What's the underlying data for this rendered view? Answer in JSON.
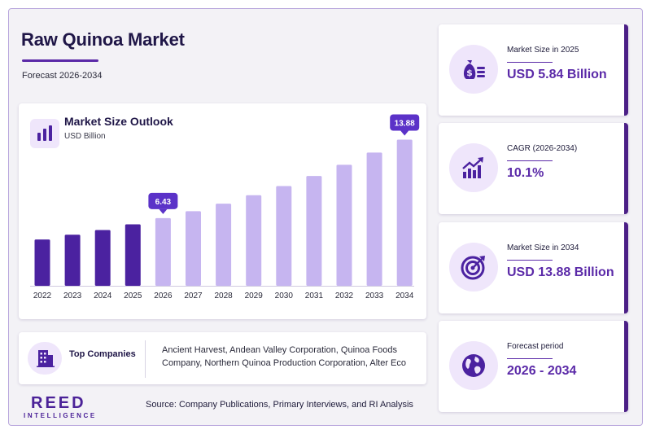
{
  "header": {
    "title": "Raw Quinoa Market",
    "subtitle": "Forecast 2026-2034"
  },
  "chart_data": {
    "type": "bar",
    "title": "Market Size Outlook",
    "unit_label": "USD Billion",
    "categories": [
      "2022",
      "2023",
      "2024",
      "2025",
      "2026",
      "2027",
      "2028",
      "2029",
      "2030",
      "2031",
      "2032",
      "2033",
      "2034"
    ],
    "values": [
      4.4,
      4.85,
      5.3,
      5.84,
      6.43,
      7.08,
      7.8,
      8.6,
      9.47,
      10.43,
      11.49,
      12.65,
      13.88
    ],
    "ylim": [
      0,
      15
    ],
    "series_colors": {
      "historical": "#4b22a0",
      "forecast": "#c6b5f0"
    },
    "historical_count": 4,
    "callouts": [
      {
        "category": "2026",
        "label": "6.43"
      },
      {
        "category": "2034",
        "label": "13.88"
      }
    ],
    "callout_color": "#5b32c8",
    "grid": false,
    "legend": "none"
  },
  "companies": {
    "label": "Top Companies",
    "text": "Ancient Harvest, Andean Valley Corporation, Quinoa Foods Company, Northern Quinoa Production Corporation, Alter Eco"
  },
  "footer": {
    "logo_main": "REED",
    "logo_sub": "INTELLIGENCE",
    "source": "Source: Company Publications, Primary Interviews, and RI Analysis"
  },
  "stats": [
    {
      "label": "Market Size in 2025",
      "value": "USD 5.84 Billion",
      "icon": "money-bag-icon"
    },
    {
      "label": "CAGR (2026-2034)",
      "value": "10.1%",
      "icon": "growth-chart-icon"
    },
    {
      "label": "Market Size in 2034",
      "value": "USD 13.88 Billion",
      "icon": "target-icon"
    },
    {
      "label": "Forecast period",
      "value": "2026 - 2034",
      "icon": "globe-icon"
    }
  ],
  "colors": {
    "accent": "#5b2aa8",
    "dark": "#1f1647",
    "card_border": "#4b1f86"
  }
}
